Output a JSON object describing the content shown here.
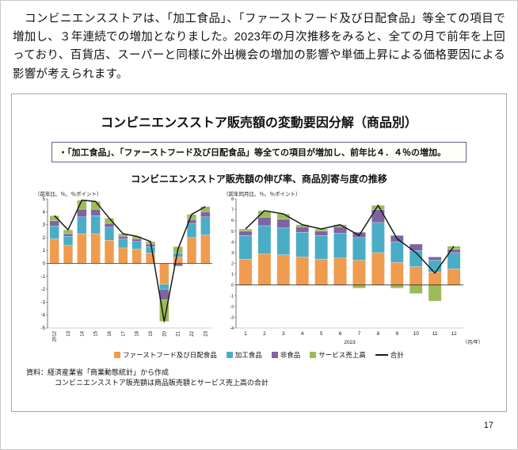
{
  "page": {
    "intro_text": "　コンビニエンスストアは、「加工食品」、「ファーストフード及び日配食品」等全ての項目で増加し、３年連続での増加となりました。2023年の月次推移をみると、全ての月で前年を上回っており、百貨店、スーパーと同様に外出機会の増加の影響や単価上昇による価格要因による影響が考えられます。",
    "page_number": "17"
  },
  "figure": {
    "title": "コンビニエンスストア販売額の変動要因分解（商品別）",
    "callout": "・「加工食品」、「ファーストフード及び日配食品」等全ての項目が増加し、前年比４．４％の増加。",
    "subtitle": "コンビニエンスストア販売額の伸び率、商品別寄与度の推移",
    "source_line1": "資料：経済産業省「商業動態統計」から作成",
    "source_line2": "コンビニエンスストア販売額は商品販売額とサービス売上高の合計",
    "legend": [
      {
        "label": "ファーストフード及び日配食品",
        "color": "#EF9B50",
        "swatch": "box"
      },
      {
        "label": "加工食品",
        "color": "#4BACC6",
        "swatch": "box"
      },
      {
        "label": "非食品",
        "color": "#8064A2",
        "swatch": "box"
      },
      {
        "label": "サービス売上高",
        "color": "#9BBB59",
        "swatch": "box"
      },
      {
        "label": "合計",
        "color": "#1a1a1a",
        "swatch": "line"
      }
    ]
  },
  "chart_data": [
    {
      "type": "bar",
      "variant": "stacked-bar-with-line",
      "axis_note": "（前年比、％、％ポイント）",
      "categories": [
        "2012",
        "13",
        "14",
        "15",
        "16",
        "17",
        "18",
        "19",
        "20",
        "21",
        "22",
        "23"
      ],
      "series": [
        {
          "name": "ファーストフード及び日配食品",
          "color": "#EF9B50",
          "values": [
            1.9,
            1.4,
            2.3,
            2.3,
            1.8,
            1.2,
            1.1,
            0.8,
            -1.6,
            0.5,
            2.0,
            2.2
          ]
        },
        {
          "name": "加工食品",
          "color": "#4BACC6",
          "values": [
            1.0,
            0.7,
            1.3,
            1.4,
            1.0,
            0.7,
            0.6,
            0.5,
            -0.4,
            0.3,
            1.1,
            1.4
          ]
        },
        {
          "name": "非食品",
          "color": "#8064A2",
          "values": [
            0.4,
            0.2,
            0.6,
            0.5,
            0.3,
            0.2,
            0.2,
            0.2,
            -0.8,
            -0.2,
            0.3,
            0.4
          ]
        },
        {
          "name": "サービス売上高",
          "color": "#9BBB59",
          "values": [
            0.4,
            0.3,
            0.7,
            0.6,
            0.4,
            0.2,
            0.2,
            0.2,
            -1.7,
            0.5,
            0.4,
            0.4
          ]
        }
      ],
      "line": {
        "name": "合計",
        "color": "#1a1a1a",
        "values": [
          3.7,
          2.6,
          4.9,
          4.8,
          3.5,
          2.3,
          2.1,
          1.7,
          -4.5,
          1.1,
          3.8,
          4.4
        ]
      },
      "ylim": [
        -5,
        5
      ],
      "ytick_step": 1,
      "grid": false,
      "x_label_rotate": true
    },
    {
      "type": "bar",
      "variant": "stacked-bar-with-line",
      "axis_note": "（前年同月比、％、％ポイント）",
      "categories": [
        "1",
        "2",
        "3",
        "4",
        "5",
        "6",
        "7",
        "8",
        "9",
        "10",
        "11",
        "12"
      ],
      "series": [
        {
          "name": "ファーストフード及び日配食品",
          "color": "#EF9B50",
          "values": [
            2.4,
            2.9,
            2.8,
            2.6,
            2.4,
            2.5,
            2.3,
            3.0,
            2.1,
            1.7,
            1.2,
            1.5
          ]
        },
        {
          "name": "加工食品",
          "color": "#4BACC6",
          "values": [
            2.2,
            2.6,
            2.5,
            2.3,
            2.2,
            2.3,
            2.1,
            2.8,
            1.9,
            1.5,
            1.1,
            1.5
          ]
        },
        {
          "name": "非食品",
          "color": "#8064A2",
          "values": [
            0.4,
            0.8,
            0.8,
            0.5,
            0.4,
            0.6,
            0.5,
            1.2,
            0.6,
            0.6,
            0.3,
            0.3
          ]
        },
        {
          "name": "サービス売上高",
          "color": "#9BBB59",
          "values": [
            0.2,
            0.6,
            0.5,
            0.2,
            0.2,
            0.2,
            -0.3,
            0.4,
            -0.3,
            -0.8,
            -1.5,
            0.3
          ]
        }
      ],
      "line": {
        "name": "合計",
        "color": "#1a1a1a",
        "values": [
          5.2,
          6.9,
          6.6,
          5.6,
          5.2,
          5.6,
          4.6,
          7.4,
          4.3,
          3.0,
          1.1,
          3.6
        ]
      },
      "ylim": [
        -4,
        8
      ],
      "ytick_step": 1,
      "grid": false,
      "x_label_rotate": false,
      "x_axis_year": "2023",
      "x_axis_unit": "（月/年）"
    }
  ]
}
